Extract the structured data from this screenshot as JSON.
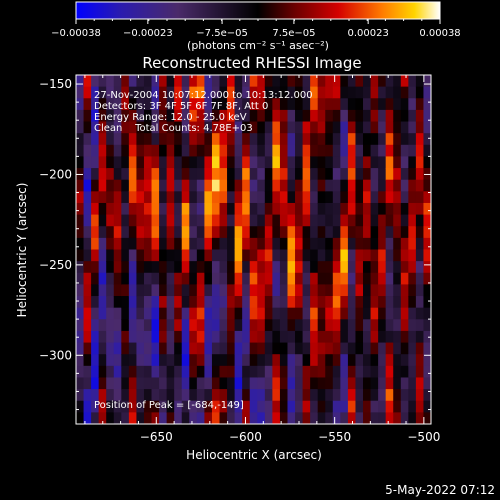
{
  "chart_data": {
    "type": "heatmap",
    "title": "Reconstructed RHESSI Image",
    "xlabel": "Heliocentric X (arcsec)",
    "ylabel": "Heliocentric Y (arcsec)",
    "xlim": [
      -695,
      -496
    ],
    "ylim": [
      -338,
      -145
    ],
    "x_ticks": [
      -650,
      -600,
      -550,
      -500
    ],
    "y_ticks": [
      -150,
      -200,
      -250,
      -300
    ],
    "x_tick_labels": [
      "−650",
      "−600",
      "−550",
      "−500"
    ],
    "y_tick_labels": [
      "−150",
      "−200",
      "−250",
      "−300"
    ],
    "colorbar": {
      "range": [
        -0.00038,
        0.00038
      ],
      "ticks": [
        -0.00038,
        -0.00023,
        -7.5e-05,
        7.5e-05,
        0.00023,
        0.00038
      ],
      "tick_labels": [
        "−0.00038",
        "−0.00023",
        "−7.5e−05",
        "7.5e−05",
        "0.00023",
        "0.00038"
      ],
      "unit_label": "(photons cm⁻² s⁻¹ asec⁻²)",
      "colors": [
        "#0000ff",
        "#3a1a8a",
        "#4a2a6a",
        "#000000",
        "#7a0000",
        "#d40000",
        "#ff7000",
        "#ffd200",
        "#ffffb0",
        "#ffffff"
      ]
    },
    "annotations": [
      "27-Nov-2004 10:07:12.000 to 10:13:12.000",
      "Detectors: 3F 4F 5F 6F 7F 8F, Att 0",
      "Energy Range: 12.0 - 25.0 keV",
      "Clean    Total Counts: 4.78E+03"
    ],
    "peak_label": "Position of Peak = [-684,-149]",
    "grid": false,
    "legend": "colorbar-top"
  },
  "footer": {
    "date": "5-May-2022 07:12"
  }
}
